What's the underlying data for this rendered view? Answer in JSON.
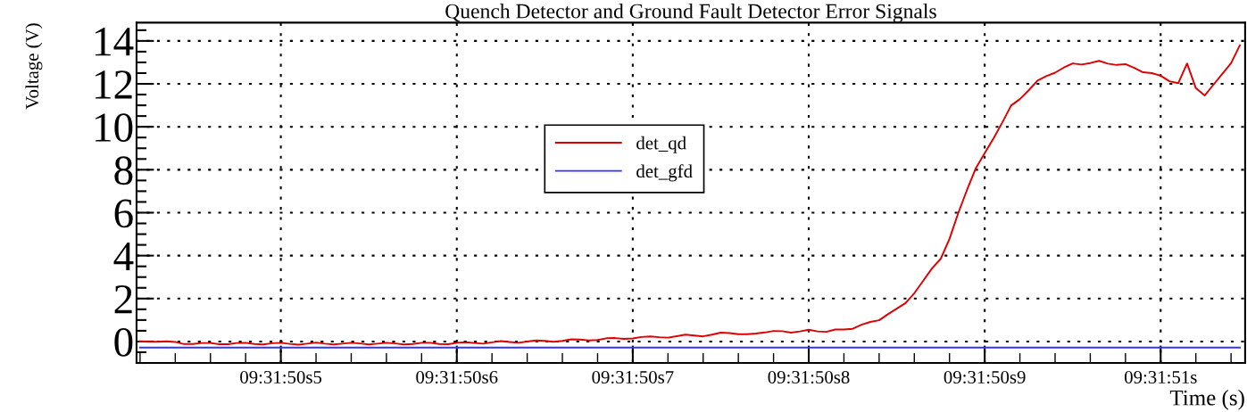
{
  "chart_data": {
    "type": "line",
    "title": "Quench Detector and Ground Fault Detector Error Signals",
    "xlabel": "Time (s)",
    "ylabel": "Voltage (V)",
    "categories": [
      null,
      null,
      null,
      null,
      null,
      null,
      null,
      null,
      null,
      null,
      null,
      null,
      null,
      null,
      null,
      null,
      "09:31:50s5",
      null,
      null,
      null,
      null,
      null,
      null,
      null,
      null,
      null,
      null,
      null,
      null,
      null,
      null,
      null,
      null,
      null,
      null,
      null,
      "09:31:50s6",
      null,
      null,
      null,
      null,
      null,
      null,
      null,
      null,
      null,
      null,
      null,
      null,
      null,
      null,
      null,
      null,
      null,
      null,
      null,
      "09:31:50s7",
      null,
      null,
      null,
      null,
      null,
      null,
      null,
      null,
      null,
      null,
      null,
      null,
      null,
      null,
      null,
      null,
      null,
      null,
      null,
      "09:31:50s8",
      null,
      null,
      null,
      null,
      null,
      null,
      null,
      null,
      null,
      null,
      null,
      null,
      null,
      null,
      null,
      null,
      null,
      null,
      null,
      "09:31:50s9",
      null,
      null,
      null,
      null,
      null,
      null,
      null,
      null,
      null,
      null,
      null,
      null,
      null,
      null,
      null,
      null,
      null,
      null,
      null,
      "09:31:51s",
      null,
      null,
      null,
      null,
      null,
      null,
      null,
      null,
      null
    ],
    "ylim": [
      -1.0,
      14.85
    ],
    "yticks": [
      0,
      2,
      4,
      6,
      8,
      10,
      12,
      14
    ],
    "grid": true,
    "legend": "center",
    "line_style": "solid",
    "marker": "none",
    "series": [
      {
        "name": "det_qd",
        "color": "#dd0000",
        "values": [
          0.01,
          -0.01,
          -0.01,
          0.01,
          -0.02,
          -0.12,
          -0.12,
          -0.07,
          -0.07,
          -0.13,
          -0.13,
          -0.07,
          -0.06,
          -0.12,
          -0.14,
          -0.08,
          -0.06,
          -0.11,
          -0.15,
          -0.1,
          -0.05,
          -0.1,
          -0.14,
          -0.1,
          -0.06,
          -0.09,
          -0.14,
          -0.1,
          -0.06,
          -0.09,
          -0.14,
          -0.12,
          -0.06,
          -0.06,
          -0.12,
          -0.13,
          -0.06,
          -0.03,
          -0.07,
          -0.1,
          -0.04,
          0.02,
          -0.02,
          -0.06,
          0.0,
          0.05,
          0.03,
          -0.01,
          0.03,
          0.1,
          0.09,
          0.05,
          0.07,
          0.15,
          0.16,
          0.12,
          0.14,
          0.21,
          0.24,
          0.2,
          0.18,
          0.25,
          0.32,
          0.28,
          0.24,
          0.32,
          0.41,
          0.39,
          0.34,
          0.34,
          0.37,
          0.42,
          0.49,
          0.48,
          0.41,
          0.47,
          0.55,
          0.47,
          0.45,
          0.56,
          0.56,
          0.59,
          0.78,
          0.91,
          0.99,
          1.27,
          1.53,
          1.79,
          2.25,
          2.82,
          3.4,
          3.85,
          4.78,
          5.99,
          7.07,
          8.08,
          8.77,
          9.46,
          10.2,
          10.99,
          11.29,
          11.7,
          12.15,
          12.36,
          12.52,
          12.76,
          12.95,
          12.9,
          12.97,
          13.07,
          12.94,
          12.88,
          12.92,
          12.74,
          12.54,
          12.5,
          12.38,
          12.12,
          12.03,
          12.95,
          11.8,
          11.46,
          11.96,
          12.46,
          12.96,
          13.8
        ]
      },
      {
        "name": "det_gfd",
        "color": "#3333ff",
        "values": [
          -0.28,
          -0.28,
          -0.28,
          -0.28,
          -0.28,
          -0.28,
          -0.28,
          -0.28,
          -0.28,
          -0.28,
          -0.28,
          -0.28,
          -0.28,
          -0.28,
          -0.28,
          -0.28,
          -0.28,
          -0.28,
          -0.28,
          -0.28,
          -0.28,
          -0.28,
          -0.28,
          -0.28,
          -0.28,
          -0.28,
          -0.28,
          -0.28,
          -0.28,
          -0.28,
          -0.28,
          -0.28,
          -0.28,
          -0.28,
          -0.28,
          -0.28,
          -0.28,
          -0.28,
          -0.28,
          -0.28,
          -0.28,
          -0.28,
          -0.28,
          -0.28,
          -0.28,
          -0.28,
          -0.28,
          -0.28,
          -0.28,
          -0.28,
          -0.28,
          -0.28,
          -0.28,
          -0.28,
          -0.28,
          -0.28,
          -0.28,
          -0.28,
          -0.28,
          -0.28,
          -0.28,
          -0.28,
          -0.28,
          -0.28,
          -0.28,
          -0.28,
          -0.28,
          -0.28,
          -0.28,
          -0.28,
          -0.28,
          -0.28,
          -0.28,
          -0.28,
          -0.28,
          -0.28,
          -0.28,
          -0.28,
          -0.28,
          -0.28,
          -0.28,
          -0.28,
          -0.28,
          -0.28,
          -0.28,
          -0.28,
          -0.28,
          -0.28,
          -0.28,
          -0.28,
          -0.28,
          -0.28,
          -0.28,
          -0.28,
          -0.28,
          -0.28,
          -0.28,
          -0.28,
          -0.28,
          -0.28,
          -0.28,
          -0.28,
          -0.28,
          -0.28,
          -0.28,
          -0.28,
          -0.28,
          -0.28,
          -0.28,
          -0.28,
          -0.28,
          -0.28,
          -0.28,
          -0.28,
          -0.28,
          -0.28,
          -0.28,
          -0.28,
          -0.28,
          -0.28,
          -0.28,
          -0.28,
          -0.28,
          -0.28,
          -0.28,
          -0.28
        ]
      }
    ]
  }
}
